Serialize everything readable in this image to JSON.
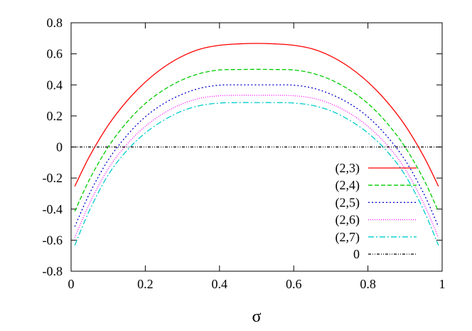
{
  "chart_data": {
    "type": "line",
    "title": "",
    "xlabel": "σ",
    "ylabel": "",
    "xlim": [
      0,
      1
    ],
    "ylim": [
      -0.8,
      0.8
    ],
    "xticks": [
      "0",
      "0.2",
      "0.4",
      "0.6",
      "0.8",
      "1"
    ],
    "yticks": [
      "0.8",
      "0.6",
      "0.4",
      "0.2",
      "0",
      "-0.2",
      "-0.4",
      "-0.6",
      "-0.8"
    ],
    "grid": false,
    "legend_position": "bottom-right",
    "x": [
      0.01,
      0.05,
      0.1,
      0.15,
      0.2,
      0.25,
      0.3,
      0.35,
      0.4,
      0.45,
      0.5,
      0.55,
      0.6,
      0.65,
      0.7,
      0.75,
      0.8,
      0.85,
      0.9,
      0.95,
      0.99
    ],
    "series": [
      {
        "name": "(2,3)",
        "color": "#ff0000",
        "dash": "solid",
        "values": [
          -0.253,
          -0.059,
          0.14,
          0.295,
          0.418,
          0.514,
          0.585,
          0.632,
          0.655,
          0.664,
          0.667,
          0.664,
          0.655,
          0.632,
          0.585,
          0.514,
          0.418,
          0.295,
          0.14,
          -0.059,
          -0.253
        ]
      },
      {
        "name": "(2,4)",
        "color": "#00cc00",
        "dash": "6,3",
        "values": [
          -0.415,
          -0.207,
          0.0,
          0.158,
          0.28,
          0.368,
          0.433,
          0.475,
          0.496,
          0.499,
          0.5,
          0.499,
          0.496,
          0.475,
          0.433,
          0.368,
          0.28,
          0.158,
          0.0,
          -0.207,
          -0.415
        ]
      },
      {
        "name": "(2,5)",
        "color": "#0000cc",
        "dash": "2,3",
        "values": [
          -0.513,
          -0.298,
          -0.084,
          0.073,
          0.194,
          0.28,
          0.34,
          0.38,
          0.398,
          0.4,
          0.4,
          0.4,
          0.398,
          0.38,
          0.34,
          0.28,
          0.194,
          0.073,
          -0.084,
          -0.298,
          -0.513
        ]
      },
      {
        "name": "(2,6)",
        "color": "#ff00ff",
        "dash": "1,2",
        "values": [
          -0.583,
          -0.362,
          -0.14,
          0.016,
          0.133,
          0.218,
          0.278,
          0.315,
          0.33,
          0.333,
          0.333,
          0.333,
          0.33,
          0.315,
          0.278,
          0.218,
          0.133,
          0.016,
          -0.14,
          -0.362,
          -0.583
        ]
      },
      {
        "name": "(2,7)",
        "color": "#00cccc",
        "dash": "8,3,2,3",
        "values": [
          -0.633,
          -0.406,
          -0.18,
          -0.024,
          0.09,
          0.173,
          0.233,
          0.268,
          0.283,
          0.286,
          0.286,
          0.286,
          0.283,
          0.268,
          0.233,
          0.173,
          0.09,
          -0.024,
          -0.18,
          -0.406,
          -0.633
        ]
      },
      {
        "name": "0",
        "color": "#000000",
        "dash": "4,2,1,2,1,2",
        "values": [
          0,
          0,
          0,
          0,
          0,
          0,
          0,
          0,
          0,
          0,
          0,
          0,
          0,
          0,
          0,
          0,
          0,
          0,
          0,
          0,
          0
        ]
      }
    ]
  }
}
